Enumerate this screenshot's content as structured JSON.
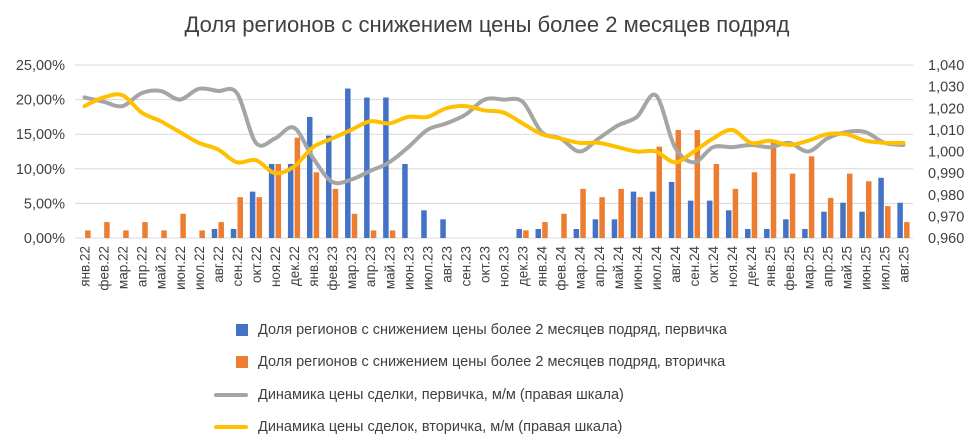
{
  "chart_data": {
    "type": "bar",
    "title": "Доля регионов с снижением цены более 2 месяцев подряд",
    "categories": [
      "янв.22",
      "фев.22",
      "мар.22",
      "апр.22",
      "май.22",
      "июн.22",
      "июл.22",
      "авг.22",
      "сен.22",
      "окт.22",
      "ноя.22",
      "дек.22",
      "янв.23",
      "фев.23",
      "мар.23",
      "апр.23",
      "май.23",
      "июн.23",
      "июл.23",
      "авг.23",
      "сен.23",
      "окт.23",
      "ноя.23",
      "дек.23",
      "янв.24",
      "фев.24",
      "мар.24",
      "апр.24",
      "май.24",
      "июн.24",
      "июл.24",
      "авг.24",
      "сен.24",
      "окт.24",
      "ноя.24",
      "дек.24",
      "янв.25",
      "фев.25",
      "мар.25",
      "апр.25",
      "май.25",
      "июн.25",
      "июл.25",
      "авг.25"
    ],
    "left_axis": {
      "ylim": [
        0,
        25
      ],
      "ticks": [
        "0,00%",
        "5,00%",
        "10,00%",
        "15,00%",
        "20,00%",
        "25,00%"
      ]
    },
    "right_axis": {
      "ylim": [
        0.96,
        1.04
      ],
      "ticks": [
        "0,960",
        "0,970",
        "0,980",
        "0,990",
        "1,000",
        "1,010",
        "1,020",
        "1,030",
        "1,040"
      ]
    },
    "series": [
      {
        "name": "Доля регионов с снижением цены более 2 месяцев подряд, первичка",
        "kind": "bar",
        "axis": "left",
        "color": "#4472C4",
        "values": [
          0,
          0,
          0,
          0,
          0,
          0,
          0,
          1.3,
          1.3,
          6.7,
          10.7,
          10.7,
          17.5,
          14.8,
          21.6,
          20.3,
          20.3,
          10.7,
          4.0,
          2.7,
          0,
          0,
          0,
          1.3,
          1.3,
          0,
          1.3,
          2.7,
          2.7,
          6.7,
          6.7,
          8.1,
          5.4,
          5.4,
          4.0,
          1.3,
          1.3,
          2.7,
          1.3,
          3.8,
          5.1,
          3.8,
          8.7,
          5.1
        ]
      },
      {
        "name": "Доля регионов с снижением цены более 2 месяцев подряд, вторичка",
        "kind": "bar",
        "axis": "left",
        "color": "#ED7D31",
        "values": [
          1.1,
          2.3,
          1.1,
          2.3,
          1.1,
          3.5,
          1.1,
          2.3,
          5.9,
          5.9,
          10.7,
          14.5,
          9.5,
          7.1,
          3.5,
          1.1,
          1.1,
          0,
          0,
          0,
          0,
          0,
          0,
          1.1,
          2.3,
          3.5,
          7.1,
          5.9,
          7.1,
          5.9,
          13.2,
          15.6,
          15.6,
          10.7,
          7.1,
          9.5,
          14.0,
          9.3,
          11.8,
          5.8,
          9.3,
          8.2,
          4.6,
          2.3
        ]
      },
      {
        "name": "Динамика цены сделки, первичка, м/м (правая шкала)",
        "kind": "line",
        "axis": "right",
        "color": "#A5A5A5",
        "values": [
          1.025,
          1.023,
          1.021,
          1.027,
          1.028,
          1.024,
          1.029,
          1.028,
          1.027,
          1.004,
          1.006,
          1.011,
          0.997,
          0.986,
          0.987,
          0.991,
          0.995,
          1.002,
          1.01,
          1.013,
          1.017,
          1.024,
          1.024,
          1.023,
          1.009,
          1.006,
          1.0,
          1.006,
          1.012,
          1.016,
          1.026,
          1.002,
          0.995,
          1.002,
          1.002,
          1.003,
          1.002,
          1.004,
          1.0,
          1.006,
          1.009,
          1.009,
          1.004,
          1.003
        ]
      },
      {
        "name": "Динамика цены сделок, вторичка, м/м (правая шкала)",
        "kind": "line",
        "axis": "right",
        "color": "#FFC000",
        "values": [
          1.021,
          1.025,
          1.026,
          1.018,
          1.014,
          1.009,
          1.004,
          1.001,
          0.995,
          0.996,
          0.99,
          0.993,
          1.002,
          1.006,
          1.01,
          1.014,
          1.013,
          1.016,
          1.016,
          1.02,
          1.021,
          1.019,
          1.018,
          1.013,
          1.008,
          1.006,
          1.004,
          1.004,
          1.002,
          1.0,
          1.0,
          0.995,
          1.0,
          1.006,
          1.01,
          1.004,
          1.005,
          1.003,
          1.005,
          1.008,
          1.008,
          1.005,
          1.004,
          1.004
        ]
      }
    ],
    "legend_position": "bottom",
    "grid": true
  }
}
